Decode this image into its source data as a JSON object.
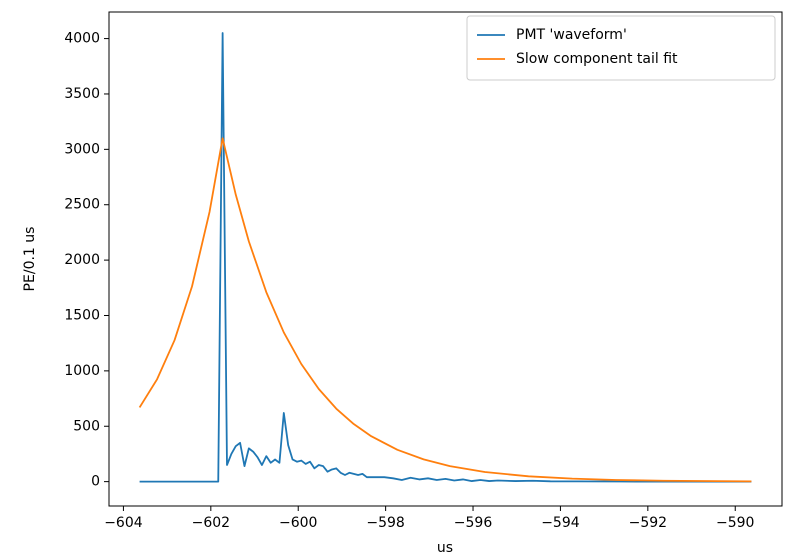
{
  "chart_data": {
    "type": "line",
    "xlabel": "us",
    "ylabel": "PE/0.1 us",
    "xlim": [
      -604.33,
      -588.93
    ],
    "ylim": [
      -220,
      4240
    ],
    "xticks": [
      {
        "value": -604,
        "label": "−604"
      },
      {
        "value": -602,
        "label": "−602"
      },
      {
        "value": -600,
        "label": "−600"
      },
      {
        "value": -598,
        "label": "−598"
      },
      {
        "value": -596,
        "label": "−596"
      },
      {
        "value": -594,
        "label": "−594"
      },
      {
        "value": -592,
        "label": "−592"
      },
      {
        "value": -590,
        "label": "−590"
      }
    ],
    "yticks": [
      0,
      500,
      1000,
      1500,
      2000,
      2500,
      3000,
      3500,
      4000
    ],
    "legend": "upper right",
    "series": [
      {
        "name": "PMT 'waveform'",
        "color": "#1f77b4",
        "x": [
          -603.63,
          -601.83,
          -601.73,
          -601.63,
          -601.53,
          -601.43,
          -601.33,
          -601.23,
          -601.13,
          -601.03,
          -600.93,
          -600.83,
          -600.73,
          -600.63,
          -600.53,
          -600.43,
          -600.33,
          -600.23,
          -600.13,
          -600.03,
          -599.93,
          -599.83,
          -599.73,
          -599.63,
          -599.53,
          -599.43,
          -599.33,
          -599.23,
          -599.13,
          -599.03,
          -598.93,
          -598.83,
          -598.73,
          -598.63,
          -598.53,
          -598.43,
          -598.03,
          -597.83,
          -597.63,
          -597.43,
          -597.23,
          -597.03,
          -596.83,
          -596.63,
          -596.43,
          -596.23,
          -596.03,
          -595.83,
          -595.63,
          -595.43,
          -595.03,
          -594.63,
          -594.23,
          -593.63,
          -592.63,
          -591.63,
          -589.63
        ],
        "values": [
          0,
          0,
          4050,
          150,
          250,
          320,
          350,
          140,
          300,
          270,
          220,
          150,
          230,
          170,
          200,
          170,
          620,
          330,
          200,
          180,
          190,
          160,
          180,
          120,
          150,
          140,
          90,
          110,
          120,
          80,
          60,
          80,
          70,
          60,
          70,
          40,
          40,
          30,
          15,
          35,
          20,
          30,
          15,
          25,
          10,
          20,
          5,
          15,
          5,
          10,
          5,
          8,
          3,
          2,
          1,
          0,
          0
        ]
      },
      {
        "name": "Slow component tail fit",
        "color": "#ff7f0e",
        "x": [
          -603.63,
          -603.23,
          -602.83,
          -602.43,
          -602.03,
          -601.73,
          -601.43,
          -601.13,
          -600.73,
          -600.33,
          -599.93,
          -599.53,
          -599.13,
          -598.73,
          -598.33,
          -597.73,
          -597.13,
          -596.53,
          -595.73,
          -594.73,
          -593.73,
          -592.73,
          -591.63,
          -589.63
        ],
        "values": [
          670,
          924,
          1277,
          1763,
          2434,
          3100,
          2592,
          2169,
          1710,
          1347,
          1062,
          836,
          659,
          520,
          410,
          287,
          201,
          140,
          87,
          48,
          27,
          15,
          8,
          2
        ]
      }
    ]
  }
}
